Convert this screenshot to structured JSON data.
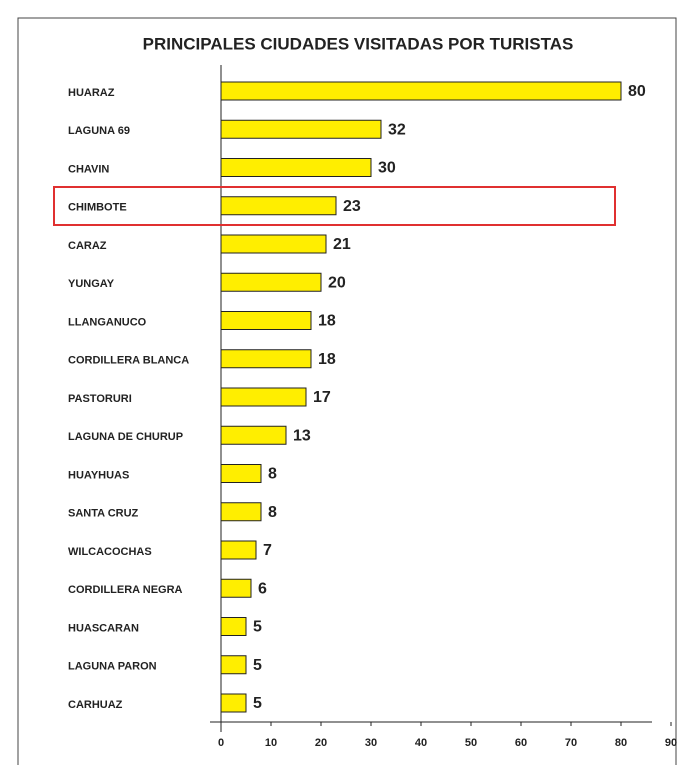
{
  "chart_data": {
    "type": "bar",
    "orientation": "horizontal",
    "title": "PRINCIPALES  CIUDADES  VISITADAS  POR  TURISTAS",
    "categories": [
      "HUARAZ",
      "LAGUNA 69",
      "CHAVIN",
      "CHIMBOTE",
      "CARAZ",
      "YUNGAY",
      "LLANGANUCO",
      "CORDILLERA BLANCA",
      "PASTORURI",
      "LAGUNA DE CHURUP",
      "HUAYHUAS",
      "SANTA CRUZ",
      "WILCACOCHAS",
      "CORDILLERA NEGRA",
      "HUASCARAN",
      "LAGUNA PARON",
      "CARHUAZ"
    ],
    "values": [
      80,
      32,
      30,
      23,
      21,
      20,
      18,
      18,
      17,
      13,
      8,
      8,
      7,
      6,
      5,
      5,
      5
    ],
    "color": "#ffee00",
    "xlim": [
      0,
      90
    ],
    "xticks": [
      0,
      10,
      20,
      30,
      40,
      50,
      60,
      70,
      80,
      90
    ]
  }
}
